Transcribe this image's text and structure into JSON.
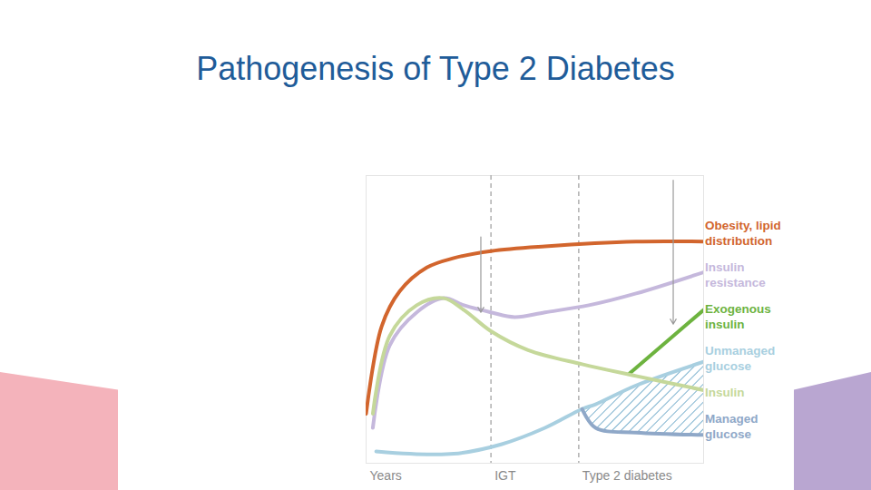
{
  "chart_data": {
    "type": "line",
    "title": "Pathogenesis of Type 2 Diabetes",
    "xlim": [
      0,
      100
    ],
    "ylim": [
      -2,
      120
    ],
    "xticks": [
      {
        "value": 0,
        "label": "Years"
      },
      {
        "value": 37,
        "label": "IGT"
      },
      {
        "value": 63,
        "label": "Type 2 diabetes"
      }
    ],
    "yticks": [],
    "tick_labels": "x",
    "grid": false,
    "legend": "right",
    "stage_lines": [
      37,
      63
    ],
    "arrows": [
      {
        "x": 34,
        "from": 94,
        "to": 62
      },
      {
        "x": 91,
        "from": 118,
        "to": 57
      }
    ],
    "hatched_area": {
      "upper": "Unmanaged glucose",
      "lower": "Managed glucose"
    },
    "series": [
      {
        "name": "Obesity, lipid distribution",
        "color": "#d2652d",
        "x": [
          0,
          4.6,
          10,
          18,
          26,
          37,
          53,
          80,
          100
        ],
        "values": [
          19,
          56,
          71,
          81,
          85,
          88,
          90,
          92,
          92
        ]
      },
      {
        "name": "Insulin resistance",
        "color": "#c5b8dc",
        "x": [
          2,
          7,
          15,
          23,
          29,
          37,
          44,
          53,
          66,
          80,
          100
        ],
        "values": [
          13,
          48,
          62,
          68,
          65,
          62,
          60,
          62,
          65,
          70,
          79
        ]
      },
      {
        "name": "Exogenous insulin",
        "color": "#6db33f",
        "x": [
          78,
          100
        ],
        "values": [
          36,
          63
        ]
      },
      {
        "name": "Unmanaged glucose",
        "color": "#a8cfe0",
        "x": [
          3,
          13,
          26,
          40,
          53,
          64,
          68,
          80,
          100
        ],
        "values": [
          3,
          2,
          2,
          6,
          13,
          21,
          23,
          31,
          41
        ]
      },
      {
        "name": "Insulin",
        "color": "#c5d89a",
        "x": [
          2,
          7,
          15,
          23,
          29,
          37,
          48,
          64,
          80,
          100
        ],
        "values": [
          19,
          52,
          65,
          68,
          63,
          54,
          46,
          40,
          35,
          29
        ]
      },
      {
        "name": "Managed glucose",
        "color": "#8fa8c8",
        "x": [
          64,
          68,
          80,
          100
        ],
        "values": [
          21,
          13,
          11,
          10
        ]
      }
    ]
  }
}
